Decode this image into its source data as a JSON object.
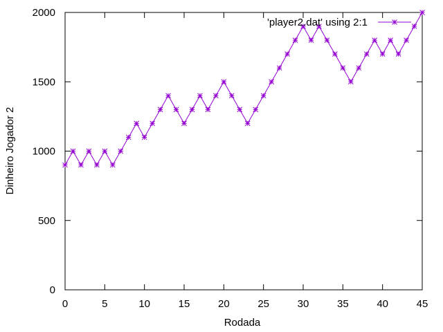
{
  "chart_data": {
    "type": "line",
    "title": "",
    "xlabel": "Rodada",
    "ylabel": "Dinheiro Jogador 2",
    "xlim": [
      0,
      45
    ],
    "ylim": [
      0,
      2000
    ],
    "xticks": [
      0,
      5,
      10,
      15,
      20,
      25,
      30,
      35,
      40,
      45
    ],
    "yticks": [
      0,
      500,
      1000,
      1500,
      2000
    ],
    "grid": false,
    "legend_position": "top-right",
    "series": [
      {
        "name": "'player2.dat' using 2:1",
        "color": "#9400d3",
        "marker": "star",
        "x": [
          0,
          1,
          2,
          3,
          4,
          5,
          6,
          7,
          8,
          9,
          10,
          11,
          12,
          13,
          14,
          15,
          16,
          17,
          18,
          19,
          20,
          21,
          22,
          23,
          24,
          25,
          26,
          27,
          28,
          29,
          30,
          31,
          32,
          33,
          34,
          35,
          36,
          37,
          38,
          39,
          40,
          41,
          42,
          43,
          44,
          45
        ],
        "y": [
          900,
          1000,
          900,
          1000,
          900,
          1000,
          900,
          1000,
          1100,
          1200,
          1100,
          1200,
          1300,
          1400,
          1300,
          1200,
          1300,
          1400,
          1300,
          1400,
          1500,
          1400,
          1300,
          1200,
          1300,
          1400,
          1500,
          1600,
          1700,
          1800,
          1900,
          1800,
          1900,
          1800,
          1700,
          1600,
          1500,
          1600,
          1700,
          1800,
          1700,
          1800,
          1700,
          1800,
          1900,
          2000
        ]
      }
    ]
  }
}
